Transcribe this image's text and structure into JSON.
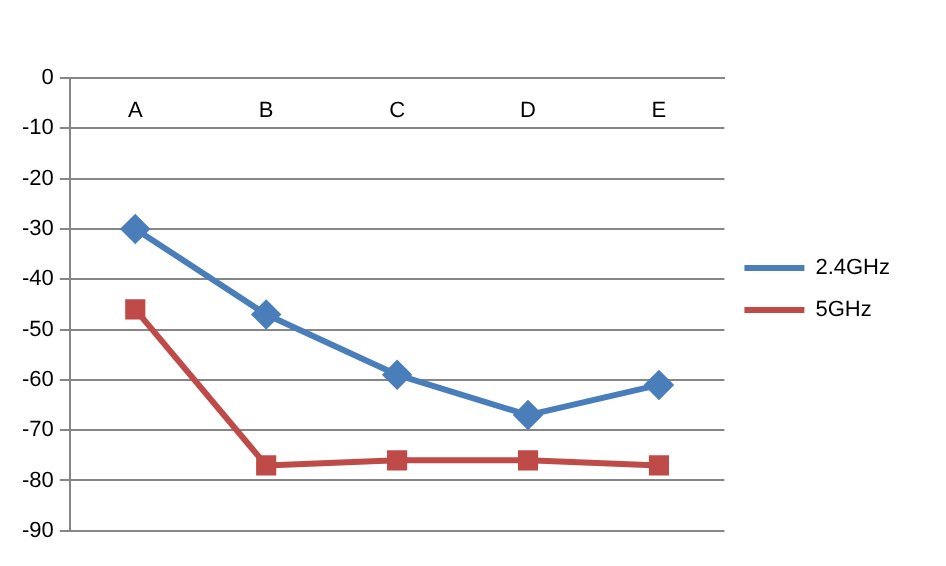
{
  "chart_data": {
    "type": "line",
    "categories": [
      "A",
      "B",
      "C",
      "D",
      "E"
    ],
    "series": [
      {
        "name": "2.4GHz",
        "color": "#4a7ebb",
        "marker": "diamond",
        "values": [
          -30,
          -47,
          -59,
          -67,
          -61
        ]
      },
      {
        "name": "5GHz",
        "color": "#be4b48",
        "marker": "square",
        "values": [
          -46,
          -77,
          -76,
          -76,
          -77
        ]
      }
    ],
    "ylim": [
      -90,
      0
    ],
    "yticks": [
      -90,
      -80,
      -70,
      -60,
      -50,
      -40,
      -30,
      -20,
      -10,
      0
    ],
    "grid": "y",
    "legend": "right",
    "line_style": "solid"
  }
}
